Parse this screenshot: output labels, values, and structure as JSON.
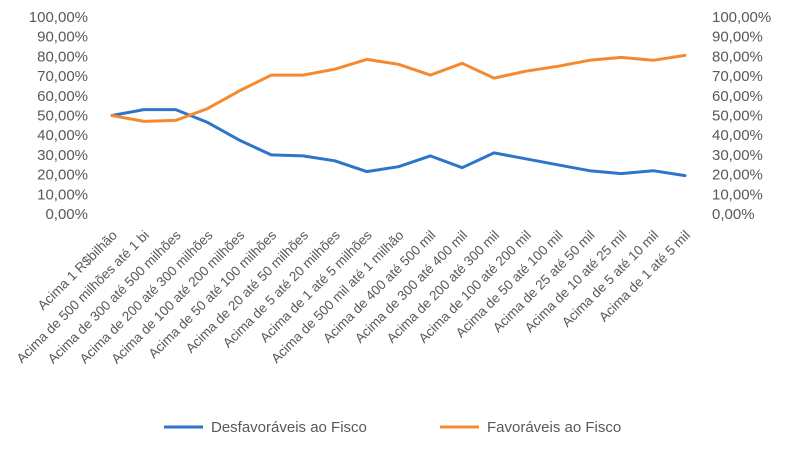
{
  "chart_data": {
    "type": "line",
    "categories": [
      "Acima 1 R$bilhão",
      "Acima de 500 milhões até 1 bi",
      "Acima de 300 até 500 milhões",
      "Acima de 200 até 300 milhões",
      "Acima de 100 até 200 milhões",
      "Acima de 50 até 100 milhões",
      "Acima de 20 até 50 milhões",
      "Acima de 5 até 20 milhões",
      "Acima de 1 até 5 milhões",
      "Acima de 500 mil até 1 milhão",
      "Acima de 400 até 500 mil",
      "Acima de 300 até 400 mil",
      "Acima de 200 até 300 mil",
      "Acima de 100 até 200 mil",
      "Acima de 50 até 100 mil",
      "Acima de 25 até 50 mil",
      "Acima de 10 até 25 mil",
      "Acima de 5 até 10 mil",
      "Acima de 1 até 5 mil"
    ],
    "series": [
      {
        "name": "Desfavoráveis ao Fisco",
        "color": "#2E75C9",
        "values": [
          50,
          53,
          53,
          46.5,
          37.5,
          30,
          29.5,
          27,
          21.5,
          24,
          29.5,
          23.5,
          31,
          28,
          25,
          22,
          20.5,
          22,
          19.5
        ]
      },
      {
        "name": "Favoráveis ao Fisco",
        "color": "#F5892F",
        "values": [
          50,
          47,
          47.5,
          53.5,
          62.5,
          70.5,
          70.5,
          73.5,
          78.5,
          76,
          70.5,
          76.5,
          69,
          72.5,
          75,
          78,
          79.5,
          78,
          80.5
        ]
      }
    ],
    "ylim": [
      0,
      100
    ],
    "yticks": [
      "0,00%",
      "10,00%",
      "20,00%",
      "30,00%",
      "40,00%",
      "50,00%",
      "60,00%",
      "70,00%",
      "80,00%",
      "90,00%",
      "100,00%"
    ],
    "y_axis_sides": "left-and-right",
    "grid": false,
    "legend": "bottom"
  }
}
